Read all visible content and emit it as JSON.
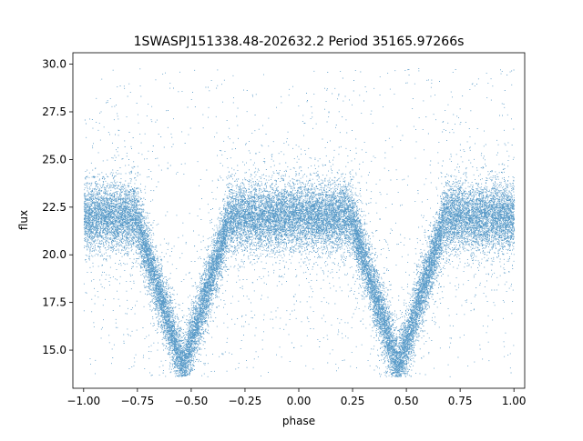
{
  "chart_data": {
    "type": "scatter",
    "title": "1SWASPJ151338.48-202632.2 Period 35165.97266s",
    "xlabel": "phase",
    "ylabel": "flux",
    "xlim": [
      -1.05,
      1.05
    ],
    "ylim": [
      13.0,
      30.6
    ],
    "x_ticks": [
      -1.0,
      -0.75,
      -0.5,
      -0.25,
      0.0,
      0.25,
      0.5,
      0.75,
      1.0
    ],
    "x_tick_labels": [
      "−1.00",
      "−0.75",
      "−0.50",
      "−0.25",
      "0.00",
      "0.25",
      "0.50",
      "0.75",
      "1.00"
    ],
    "y_ticks": [
      15.0,
      17.5,
      20.0,
      22.5,
      25.0,
      27.5,
      30.0
    ],
    "y_tick_labels": [
      "15.0",
      "17.5",
      "20.0",
      "22.5",
      "25.0",
      "27.5",
      "30.0"
    ],
    "grid": false,
    "legend": "none",
    "marker_color": "#1f77b4",
    "baseline_flux": 22.0,
    "eclipses": [
      {
        "phase": -0.54,
        "min_flux": 14.0
      },
      {
        "phase": 0.46,
        "min_flux": 14.0
      }
    ],
    "x_range": [
      -1.0,
      1.0
    ],
    "y_range": [
      13.6,
      29.8
    ]
  }
}
